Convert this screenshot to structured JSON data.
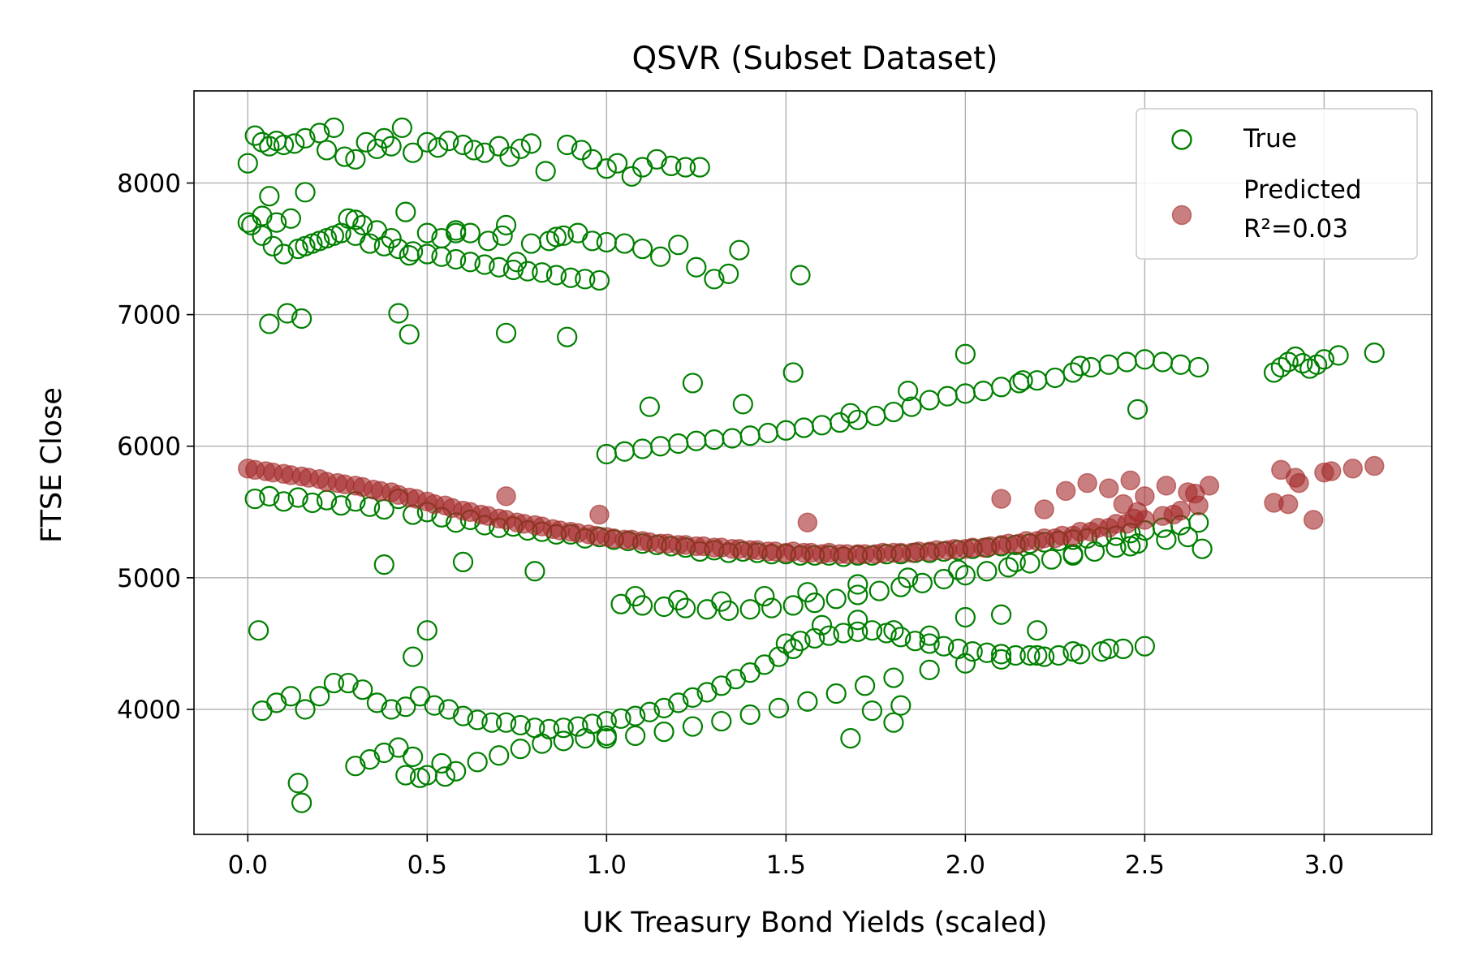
{
  "chart_data": {
    "type": "scatter",
    "title": "QSVR (Subset Dataset)",
    "xlabel": "UK Treasury Bond Yields (scaled)",
    "ylabel": "FTSE Close",
    "xlim": [
      -0.15,
      3.3
    ],
    "ylim": [
      3050,
      8700
    ],
    "xticks": [
      0.0,
      0.5,
      1.0,
      1.5,
      2.0,
      2.5,
      3.0
    ],
    "xtick_labels": [
      "0.0",
      "0.5",
      "1.0",
      "1.5",
      "2.0",
      "2.5",
      "3.0"
    ],
    "yticks": [
      4000,
      5000,
      6000,
      7000,
      8000
    ],
    "ytick_labels": [
      "4000",
      "5000",
      "6000",
      "7000",
      "8000"
    ],
    "grid": true,
    "legend_position": "upper-right",
    "colors": {
      "true": "#008000",
      "predicted": "#a52a2a"
    },
    "series": [
      {
        "name": "True",
        "marker": "hollow-circle",
        "x": [
          0.0,
          0.02,
          0.04,
          0.06,
          0.08,
          0.1,
          0.13,
          0.16,
          0.2,
          0.22,
          0.24,
          0.27,
          0.3,
          0.33,
          0.36,
          0.38,
          0.4,
          0.43,
          0.46,
          0.5,
          0.53,
          0.56,
          0.6,
          0.63,
          0.66,
          0.7,
          0.73,
          0.76,
          0.79,
          0.83,
          0.89,
          0.93,
          0.96,
          1.0,
          1.03,
          1.07,
          1.1,
          1.14,
          1.18,
          1.22,
          1.26,
          0.0,
          0.04,
          0.08,
          0.12,
          0.16,
          0.2,
          0.24,
          0.28,
          0.32,
          0.36,
          0.4,
          0.45,
          0.5,
          0.54,
          0.58,
          0.62,
          0.67,
          0.71,
          0.75,
          0.79,
          0.84,
          0.88,
          0.92,
          0.96,
          1.0,
          1.05,
          1.1,
          1.15,
          1.2,
          1.25,
          1.3,
          1.34,
          1.37,
          1.54,
          0.06,
          0.11,
          0.15,
          0.42,
          0.45,
          0.72,
          0.89,
          0.02,
          0.06,
          0.1,
          0.14,
          0.18,
          0.22,
          0.26,
          0.3,
          0.34,
          0.38,
          0.42,
          0.46,
          0.5,
          0.54,
          0.58,
          0.62,
          0.66,
          0.7,
          0.74,
          0.78,
          0.82,
          0.86,
          0.9,
          0.94,
          0.98,
          1.02,
          1.06,
          1.1,
          1.14,
          1.18,
          1.22,
          1.26,
          1.3,
          1.34,
          1.38,
          1.42,
          1.46,
          1.5,
          1.54,
          1.58,
          1.62,
          1.66,
          1.7,
          1.74,
          1.78,
          1.82,
          1.86,
          1.9,
          1.94,
          1.98,
          2.02,
          2.06,
          2.1,
          2.14,
          2.18,
          2.22,
          2.26,
          2.3,
          2.34,
          2.38,
          2.42,
          2.46,
          2.5,
          2.55,
          2.6,
          2.65,
          1.0,
          1.05,
          1.1,
          1.15,
          1.2,
          1.25,
          1.3,
          1.35,
          1.4,
          1.45,
          1.5,
          1.55,
          1.6,
          1.65,
          1.7,
          1.75,
          1.8,
          1.85,
          1.9,
          1.95,
          2.0,
          2.05,
          2.1,
          2.15,
          2.2,
          2.25,
          2.3,
          2.35,
          2.4,
          2.45,
          2.5,
          2.55,
          2.6,
          2.65,
          1.12,
          1.24,
          1.38,
          1.52,
          1.68,
          1.84,
          2.0,
          2.16,
          2.32,
          2.48,
          1.04,
          1.1,
          1.16,
          1.22,
          1.28,
          1.34,
          1.4,
          1.46,
          1.52,
          1.58,
          1.64,
          1.7,
          1.76,
          1.82,
          1.88,
          1.94,
          2.0,
          2.06,
          2.12,
          2.18,
          2.24,
          2.3,
          2.36,
          2.42,
          2.48,
          2.56,
          2.62,
          2.66,
          1.08,
          1.2,
          1.32,
          1.44,
          1.56,
          1.7,
          1.84,
          1.98,
          2.14,
          2.3,
          2.46,
          1.0,
          1.08,
          1.16,
          1.24,
          1.32,
          1.4,
          1.48,
          1.56,
          1.64,
          1.72,
          1.8,
          1.9,
          2.0,
          2.1,
          2.2,
          2.3,
          2.4,
          2.86,
          2.88,
          2.9,
          2.92,
          2.94,
          2.96,
          2.98,
          3.0,
          3.04,
          3.14,
          0.01,
          0.04,
          0.07,
          0.1,
          0.14,
          0.18,
          0.22,
          0.26,
          0.3,
          0.34,
          0.38,
          0.42,
          0.46,
          0.5,
          0.54,
          0.58,
          0.62,
          0.66,
          0.7,
          0.74,
          0.78,
          0.82,
          0.86,
          0.9,
          0.94,
          0.98,
          0.06,
          0.16,
          0.3,
          0.44,
          0.58,
          0.72,
          0.86,
          0.04,
          0.08,
          0.12,
          0.16,
          0.2,
          0.24,
          0.28,
          0.32,
          0.36,
          0.4,
          0.44,
          0.48,
          0.52,
          0.56,
          0.6,
          0.64,
          0.68,
          0.72,
          0.76,
          0.8,
          0.84,
          0.88,
          0.92,
          0.96,
          1.0,
          1.04,
          1.08,
          1.12,
          1.16,
          1.2,
          1.24,
          1.28,
          1.32,
          1.36,
          1.4,
          1.44,
          1.48,
          1.52,
          0.3,
          0.34,
          0.38,
          0.42,
          0.46,
          0.5,
          0.54,
          0.58,
          0.64,
          0.7,
          0.76,
          0.82,
          0.88,
          0.94,
          1.0,
          0.14,
          0.15,
          0.44,
          0.48,
          0.55,
          1.5,
          1.54,
          1.58,
          1.62,
          1.66,
          1.7,
          1.74,
          1.78,
          1.82,
          1.86,
          1.9,
          1.94,
          1.98,
          2.02,
          2.06,
          2.1,
          2.14,
          2.18,
          2.22,
          2.26,
          2.32,
          2.38,
          2.44,
          2.5,
          1.6,
          1.7,
          1.8,
          1.9,
          2.0,
          2.1,
          2.2,
          1.68,
          1.74,
          1.8,
          1.82,
          0.03,
          0.5,
          0.46,
          0.38,
          0.6,
          0.8
        ],
        "y": [
          8150,
          8360,
          8310,
          8280,
          8320,
          8290,
          8300,
          8340,
          8380,
          8250,
          8420,
          8200,
          8180,
          8310,
          8260,
          8340,
          8280,
          8420,
          8230,
          8310,
          8270,
          8320,
          8290,
          8250,
          8230,
          8280,
          8200,
          8260,
          8300,
          8090,
          8290,
          8250,
          8180,
          8110,
          8150,
          8050,
          8120,
          8180,
          8130,
          8120,
          8120,
          7700,
          7750,
          7700,
          7730,
          7520,
          7560,
          7600,
          7730,
          7680,
          7640,
          7580,
          7450,
          7620,
          7580,
          7640,
          7620,
          7560,
          7600,
          7400,
          7540,
          7560,
          7600,
          7620,
          7560,
          7550,
          7540,
          7500,
          7440,
          7530,
          7360,
          7270,
          7310,
          7490,
          7300,
          6930,
          7010,
          6970,
          7010,
          6850,
          6860,
          6830,
          5600,
          5620,
          5580,
          5610,
          5570,
          5590,
          5550,
          5580,
          5540,
          5520,
          5600,
          5480,
          5500,
          5460,
          5420,
          5440,
          5400,
          5380,
          5390,
          5360,
          5350,
          5330,
          5330,
          5300,
          5310,
          5290,
          5280,
          5260,
          5250,
          5240,
          5230,
          5200,
          5210,
          5190,
          5200,
          5190,
          5180,
          5180,
          5170,
          5170,
          5170,
          5160,
          5170,
          5170,
          5180,
          5180,
          5190,
          5190,
          5200,
          5210,
          5220,
          5230,
          5240,
          5250,
          5260,
          5270,
          5280,
          5290,
          5300,
          5310,
          5320,
          5340,
          5360,
          5380,
          5400,
          5420,
          5940,
          5960,
          5980,
          6000,
          6020,
          6040,
          6050,
          6060,
          6080,
          6100,
          6120,
          6140,
          6160,
          6180,
          6200,
          6230,
          6260,
          6300,
          6350,
          6380,
          6400,
          6420,
          6450,
          6480,
          6500,
          6520,
          6560,
          6600,
          6620,
          6640,
          6660,
          6640,
          6620,
          6600,
          6300,
          6480,
          6320,
          6560,
          6250,
          6420,
          6700,
          6500,
          6610,
          6280,
          4800,
          4790,
          4780,
          4770,
          4760,
          4750,
          4760,
          4770,
          4790,
          4810,
          4840,
          4870,
          4900,
          4930,
          4960,
          4990,
          5020,
          5050,
          5080,
          5110,
          5140,
          5170,
          5200,
          5230,
          5260,
          5290,
          5310,
          5220,
          4860,
          4830,
          4820,
          4860,
          4890,
          4950,
          5000,
          5060,
          5120,
          5180,
          5240,
          3780,
          3800,
          3830,
          3870,
          3910,
          3960,
          4010,
          4060,
          4120,
          4180,
          4240,
          4300,
          4350,
          4380,
          4410,
          4440,
          4460,
          6560,
          6600,
          6640,
          6680,
          6630,
          6590,
          6620,
          6660,
          6690,
          6710,
          7680,
          7600,
          7520,
          7460,
          7500,
          7540,
          7580,
          7620,
          7600,
          7540,
          7520,
          7500,
          7480,
          7460,
          7440,
          7420,
          7400,
          7380,
          7360,
          7340,
          7330,
          7320,
          7300,
          7280,
          7270,
          7260,
          7900,
          7930,
          7720,
          7780,
          7620,
          7680,
          7590,
          3990,
          4050,
          4100,
          4000,
          4100,
          4200,
          4200,
          4150,
          4050,
          4000,
          4020,
          4100,
          4030,
          4000,
          3950,
          3920,
          3900,
          3900,
          3880,
          3860,
          3850,
          3860,
          3870,
          3890,
          3910,
          3930,
          3950,
          3980,
          4010,
          4050,
          4090,
          4130,
          4180,
          4230,
          4280,
          4340,
          4400,
          4460,
          3570,
          3620,
          3670,
          3710,
          3640,
          3500,
          3590,
          3530,
          3600,
          3650,
          3700,
          3740,
          3760,
          3780,
          3800,
          3440,
          3290,
          3500,
          3480,
          3490,
          4500,
          4520,
          4540,
          4560,
          4580,
          4590,
          4600,
          4580,
          4550,
          4520,
          4500,
          4480,
          4460,
          4440,
          4430,
          4420,
          4410,
          4410,
          4400,
          4410,
          4420,
          4440,
          4460,
          4480,
          4640,
          4680,
          4600,
          4560,
          4700,
          4720,
          4600,
          3780,
          3990,
          3900,
          4030,
          4600,
          4600,
          4400,
          5100,
          5120,
          5050
        ]
      },
      {
        "name": "Predicted",
        "marker": "filled-circle",
        "x": [
          0.0,
          0.05,
          0.1,
          0.15,
          0.2,
          0.25,
          0.3,
          0.35,
          0.4,
          0.45,
          0.5,
          0.55,
          0.6,
          0.65,
          0.7,
          0.75,
          0.8,
          0.85,
          0.9,
          0.95,
          1.0,
          1.05,
          1.1,
          1.15,
          1.2,
          1.25,
          1.3,
          1.35,
          1.4,
          1.45,
          1.5,
          1.55,
          1.6,
          1.65,
          1.7,
          1.75,
          1.8,
          1.85,
          1.9,
          1.95,
          2.0,
          2.05,
          2.1,
          2.15,
          2.2,
          2.25,
          2.3,
          2.35,
          2.4,
          2.45,
          2.5,
          2.55,
          2.6,
          2.65,
          0.02,
          0.07,
          0.12,
          0.17,
          0.22,
          0.27,
          0.32,
          0.37,
          0.42,
          0.47,
          0.52,
          0.57,
          0.62,
          0.67,
          0.72,
          0.77,
          0.82,
          0.87,
          0.92,
          0.97,
          1.02,
          1.07,
          1.12,
          1.17,
          1.22,
          1.27,
          1.32,
          1.37,
          1.42,
          1.47,
          1.52,
          1.57,
          1.62,
          1.67,
          1.72,
          1.77,
          1.82,
          1.87,
          1.92,
          1.97,
          2.02,
          2.07,
          2.12,
          2.17,
          2.22,
          2.27,
          2.32,
          2.37,
          2.42,
          2.47,
          2.1,
          2.22,
          2.28,
          2.34,
          2.4,
          2.46,
          2.5,
          2.56,
          2.62,
          2.68,
          2.44,
          2.48,
          2.58,
          2.64,
          1.56,
          0.72,
          0.98,
          2.86,
          2.88,
          2.9,
          2.92,
          2.93,
          2.97,
          3.0,
          3.02,
          3.08,
          3.14
        ],
        "y": [
          5830,
          5810,
          5790,
          5770,
          5750,
          5720,
          5700,
          5670,
          5650,
          5610,
          5580,
          5550,
          5510,
          5480,
          5450,
          5420,
          5400,
          5370,
          5350,
          5330,
          5310,
          5290,
          5280,
          5260,
          5250,
          5240,
          5230,
          5220,
          5210,
          5200,
          5190,
          5190,
          5180,
          5180,
          5180,
          5180,
          5190,
          5190,
          5200,
          5210,
          5220,
          5230,
          5250,
          5260,
          5280,
          5300,
          5320,
          5350,
          5380,
          5410,
          5440,
          5470,
          5510,
          5550,
          5820,
          5800,
          5780,
          5760,
          5730,
          5710,
          5690,
          5660,
          5630,
          5600,
          5560,
          5530,
          5500,
          5470,
          5440,
          5410,
          5390,
          5360,
          5340,
          5320,
          5300,
          5290,
          5270,
          5260,
          5250,
          5240,
          5230,
          5220,
          5210,
          5200,
          5200,
          5190,
          5190,
          5180,
          5180,
          5190,
          5190,
          5200,
          5210,
          5220,
          5230,
          5240,
          5260,
          5280,
          5300,
          5320,
          5350,
          5380,
          5410,
          5450,
          5600,
          5520,
          5660,
          5720,
          5680,
          5740,
          5620,
          5700,
          5650,
          5700,
          5560,
          5500,
          5480,
          5640,
          5420,
          5620,
          5480,
          5570,
          5820,
          5560,
          5760,
          5720,
          5440,
          5800,
          5810,
          5830,
          5850
        ]
      }
    ]
  },
  "legend": {
    "true_label": "True",
    "predicted_label": "Predicted",
    "r2_label": "R²=0.03"
  }
}
